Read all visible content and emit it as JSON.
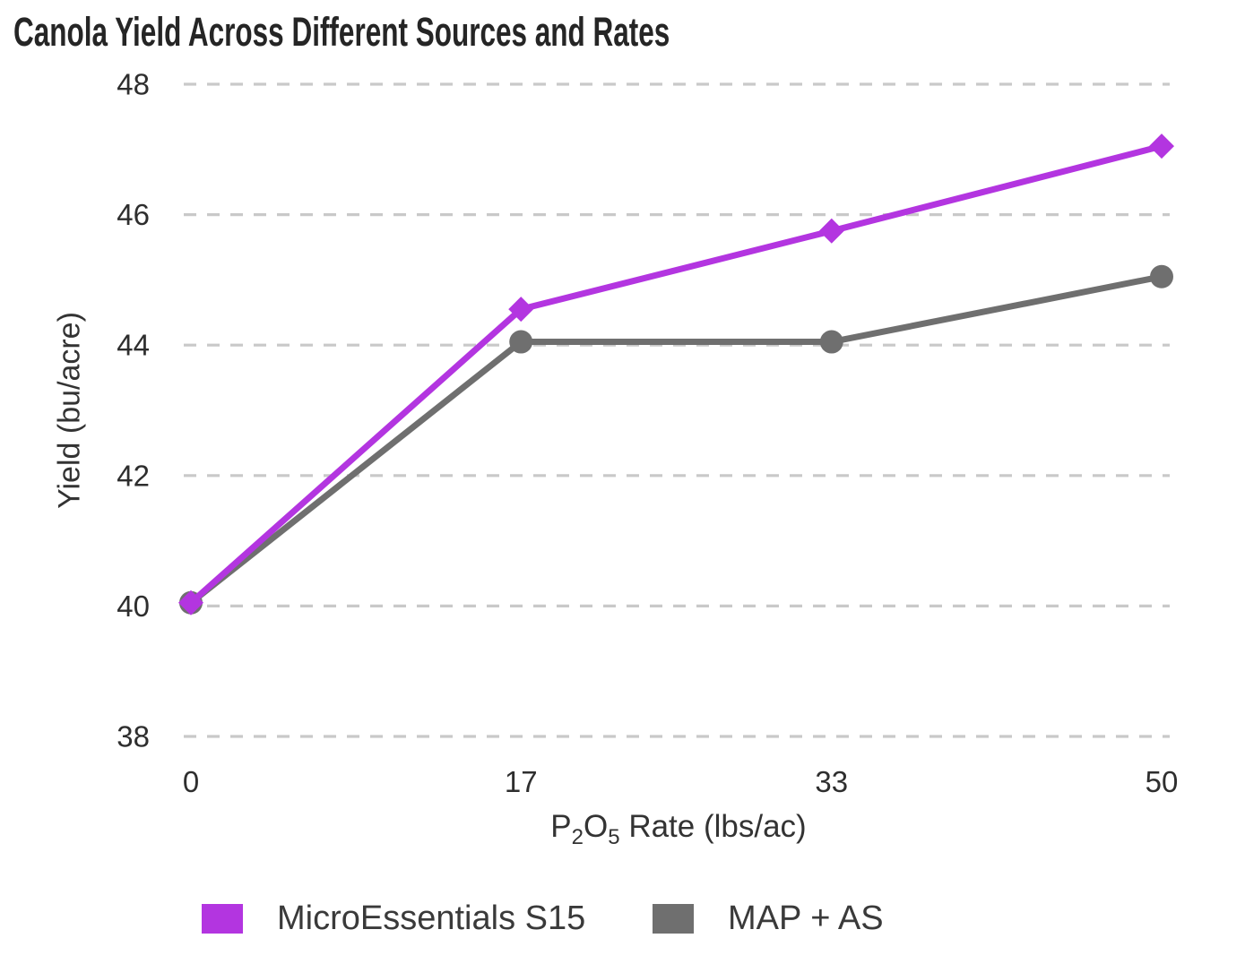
{
  "title": "Canola Yield Across Different Sources and Rates",
  "chart_data": {
    "type": "line",
    "x": [
      0,
      17,
      33,
      50
    ],
    "x_tick_labels": [
      "0",
      "17",
      "33",
      "50"
    ],
    "yticks": [
      38,
      40,
      42,
      44,
      46,
      48
    ],
    "xlim": [
      0,
      50
    ],
    "ylim": [
      38,
      48
    ],
    "series": [
      {
        "name": "MicroEssentials S15",
        "color": "#b335e0",
        "marker": "diamond",
        "values": [
          40.05,
          44.55,
          45.75,
          47.05
        ]
      },
      {
        "name": "MAP + AS",
        "color": "#6f6f6f",
        "marker": "circle",
        "values": [
          40.05,
          44.05,
          44.05,
          45.05
        ]
      }
    ],
    "xlabel": {
      "pre": "P",
      "sub1": "2",
      "mid": "O",
      "sub2": "5",
      "post": " Rate (lbs/ac)"
    },
    "ylabel": "Yield (bu/acre)",
    "grid": "horizontal dashed gridlines only",
    "gridline_color": "#c9c9c9",
    "tick_text_color": "#2e2e2e",
    "legend_position": "bottom"
  }
}
